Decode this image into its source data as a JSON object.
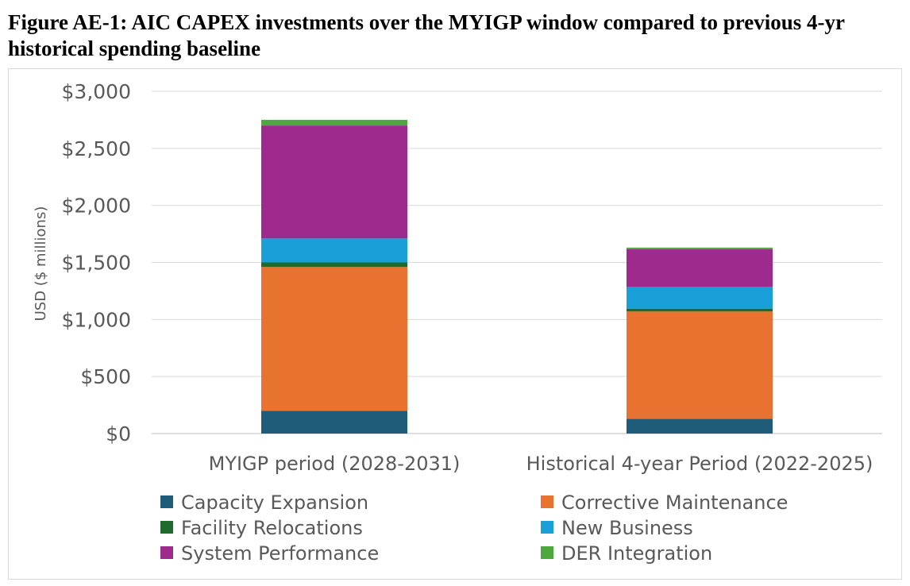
{
  "figure": {
    "title": "Figure AE-1: AIC CAPEX investments over the MYIGP window compared to previous 4-yr historical spending baseline"
  },
  "chart_data": {
    "type": "bar",
    "stacked": true,
    "title": "",
    "xlabel": "",
    "ylabel": "USD ($ millions)",
    "ylim": [
      0,
      3000
    ],
    "yticks": [
      0,
      500,
      1000,
      1500,
      2000,
      2500,
      3000
    ],
    "ytick_labels": [
      "$0",
      "$500",
      "$1,000",
      "$1,500",
      "$2,000",
      "$2,500",
      "$3,000"
    ],
    "grid": true,
    "legend_position": "bottom",
    "categories": [
      "MYIGP period (2028-2031)",
      "Historical 4-year Period (2022-2025)"
    ],
    "series": [
      {
        "name": "Capacity Expansion",
        "color": "#1f5c7a",
        "values": [
          200,
          130
        ]
      },
      {
        "name": "Corrective Maintenance",
        "color": "#e87331",
        "values": [
          1260,
          940
        ]
      },
      {
        "name": "Facility Relocations",
        "color": "#1e6b2e",
        "values": [
          40,
          25
        ]
      },
      {
        "name": "New Business",
        "color": "#1aa0d8",
        "values": [
          210,
          190
        ]
      },
      {
        "name": "System Performance",
        "color": "#9e2a8e",
        "values": [
          990,
          330
        ]
      },
      {
        "name": "DER Integration",
        "color": "#4ea83f",
        "values": [
          50,
          15
        ]
      }
    ]
  }
}
